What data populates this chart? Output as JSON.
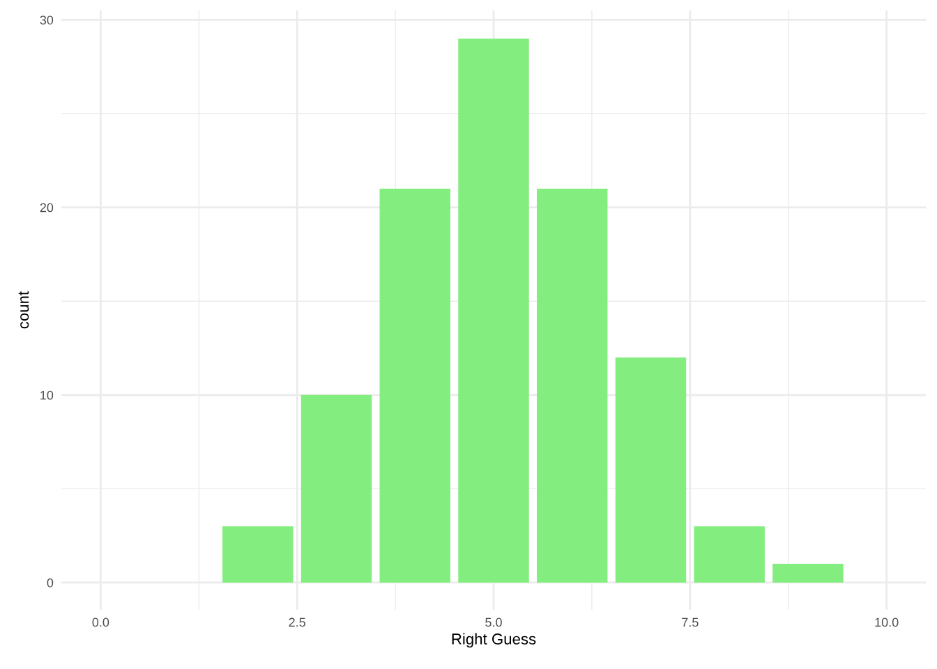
{
  "chart_data": {
    "type": "bar",
    "xlabel": "Right Guess",
    "ylabel": "count",
    "x": [
      2,
      3,
      4,
      5,
      6,
      7,
      8,
      9
    ],
    "values": [
      3,
      10,
      21,
      29,
      21,
      12,
      3,
      1
    ],
    "color": "#83ee7f",
    "xlim": [
      -0.5,
      10.5
    ],
    "xticks": [
      {
        "value": 0,
        "label": "0.0"
      },
      2.5,
      {
        "value": 5,
        "label": "5.0"
      },
      7.5,
      {
        "value": 10,
        "label": "10.0"
      }
    ],
    "ylim": [
      -1.45,
      30.5
    ],
    "yticks": [
      0,
      10,
      20,
      30
    ],
    "grid": true
  }
}
